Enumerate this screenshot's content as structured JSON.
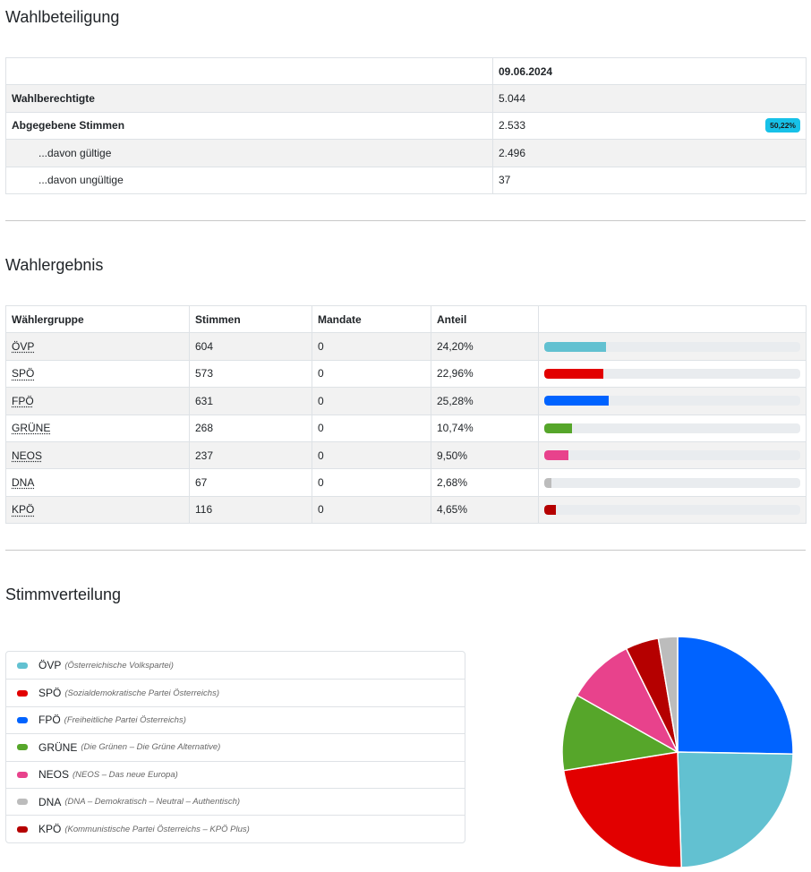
{
  "turnout": {
    "heading": "Wahlbeteiligung",
    "date": "09.06.2024",
    "rows": [
      {
        "label": "Wahlberechtigte",
        "value": "5.044"
      },
      {
        "label": "Abgegebene Stimmen",
        "value": "2.533",
        "badge": "50,22%"
      },
      {
        "label": "...davon gültige",
        "value": "2.496"
      },
      {
        "label": "...davon ungültige",
        "value": "37"
      }
    ]
  },
  "results": {
    "heading": "Wahlergebnis",
    "columns": [
      "Wählergruppe",
      "Stimmen",
      "Mandate",
      "Anteil"
    ],
    "rows": [
      {
        "party": "ÖVP",
        "votes": "604",
        "seats": "0",
        "share": "24,20%",
        "pct": 24.2,
        "color": "#62c1d1"
      },
      {
        "party": "SPÖ",
        "votes": "573",
        "seats": "0",
        "share": "22,96%",
        "pct": 22.96,
        "color": "#e20000"
      },
      {
        "party": "FPÖ",
        "votes": "631",
        "seats": "0",
        "share": "25,28%",
        "pct": 25.28,
        "color": "#0063ff"
      },
      {
        "party": "GRÜNE",
        "votes": "268",
        "seats": "0",
        "share": "10,74%",
        "pct": 10.74,
        "color": "#56a62a"
      },
      {
        "party": "NEOS",
        "votes": "237",
        "seats": "0",
        "share": "9,50%",
        "pct": 9.5,
        "color": "#e8428c"
      },
      {
        "party": "DNA",
        "votes": "67",
        "seats": "0",
        "share": "2,68%",
        "pct": 2.68,
        "color": "#bcbcbc"
      },
      {
        "party": "KPÖ",
        "votes": "116",
        "seats": "0",
        "share": "4,65%",
        "pct": 4.65,
        "color": "#b50000"
      }
    ]
  },
  "distribution": {
    "heading": "Stimmverteilung",
    "legend": [
      {
        "short": "ÖVP",
        "full": "(Österreichische Volkspartei)",
        "color": "#62c1d1"
      },
      {
        "short": "SPÖ",
        "full": "(Sozialdemokratische Partei Österreichs)",
        "color": "#e20000"
      },
      {
        "short": "FPÖ",
        "full": "(Freiheitliche Partei Österreichs)",
        "color": "#0063ff"
      },
      {
        "short": "GRÜNE",
        "full": "(Die Grünen – Die Grüne Alternative)",
        "color": "#56a62a"
      },
      {
        "short": "NEOS",
        "full": "(NEOS – Das neue Europa)",
        "color": "#e8428c"
      },
      {
        "short": "DNA",
        "full": "(DNA – Demokratisch – Neutral – Authentisch)",
        "color": "#bcbcbc"
      },
      {
        "short": "KPÖ",
        "full": "(Kommunistische Partei Österreichs – KPÖ Plus)",
        "color": "#b50000"
      }
    ]
  },
  "chart_data": {
    "type": "pie",
    "title": "Stimmverteilung",
    "categories": [
      "FPÖ",
      "ÖVP",
      "SPÖ",
      "GRÜNE",
      "NEOS",
      "KPÖ",
      "DNA"
    ],
    "values": [
      631,
      604,
      573,
      268,
      237,
      116,
      67
    ],
    "colors": [
      "#0063ff",
      "#62c1d1",
      "#e20000",
      "#56a62a",
      "#e8428c",
      "#b50000",
      "#bcbcbc"
    ]
  }
}
